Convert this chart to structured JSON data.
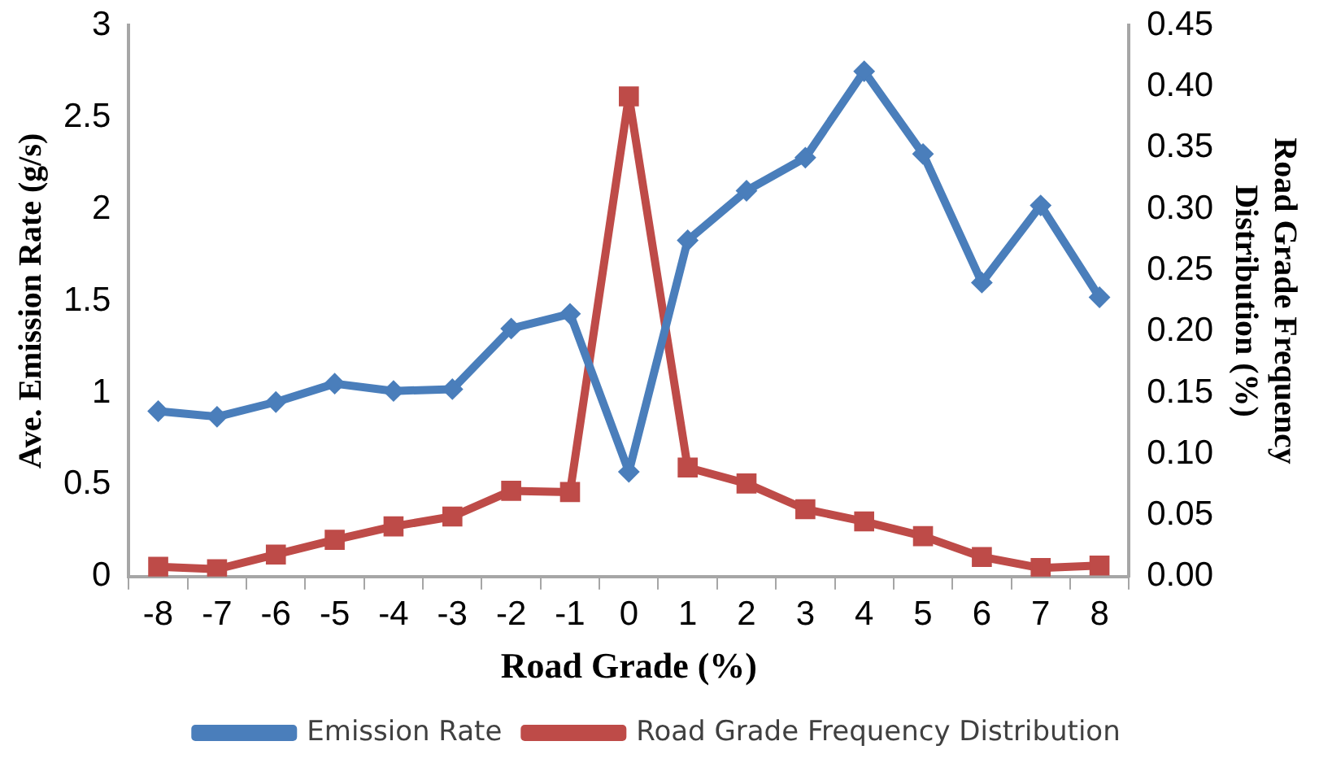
{
  "chart_data": {
    "type": "line",
    "xlabel": "Road Grade (%)",
    "ylabel": "Ave. Emission Rate (g/s)",
    "y2label": "Road Grade Frequency Distribution (%)",
    "categories": [
      "-8",
      "-7",
      "-6",
      "-5",
      "-4",
      "-3",
      "-2",
      "-1",
      "0",
      "1",
      "2",
      "3",
      "4",
      "5",
      "6",
      "7",
      "8"
    ],
    "series": [
      {
        "name": "Emission Rate",
        "color": "#4a7ebb",
        "marker": "diamond",
        "values": [
          0.9,
          0.87,
          0.95,
          1.05,
          1.01,
          1.02,
          1.35,
          1.43,
          0.57,
          1.83,
          2.1,
          2.28,
          2.75,
          2.3,
          1.6,
          2.02,
          1.52
        ]
      },
      {
        "name": "Road Grade Frequency Distribution",
        "color": "#be4b48",
        "marker": "square",
        "axis": "y2",
        "values": [
          0.008,
          0.006,
          0.018,
          0.03,
          0.041,
          0.049,
          0.07,
          0.069,
          0.392,
          0.089,
          0.076,
          0.055,
          0.045,
          0.033,
          0.016,
          0.007,
          0.009
        ]
      }
    ],
    "ylim": [
      0,
      3
    ],
    "yticks": [
      0,
      0.5,
      1,
      1.5,
      2,
      2.5,
      3
    ],
    "y2lim": [
      0,
      0.45
    ],
    "y2ticks": [
      {
        "value": 0,
        "label": "0.00"
      },
      {
        "value": 0.05,
        "label": "0.05"
      },
      {
        "value": 0.1,
        "label": "0.10"
      },
      {
        "value": 0.15,
        "label": "0.15"
      },
      {
        "value": 0.2,
        "label": "0.20"
      },
      {
        "value": 0.25,
        "label": "0.25"
      },
      {
        "value": 0.3,
        "label": "0.30"
      },
      {
        "value": 0.35,
        "label": "0.35"
      },
      {
        "value": 0.4,
        "label": "0.40"
      },
      {
        "value": 0.45,
        "label": "0.45"
      }
    ],
    "grid": false,
    "legend": "bottom"
  }
}
